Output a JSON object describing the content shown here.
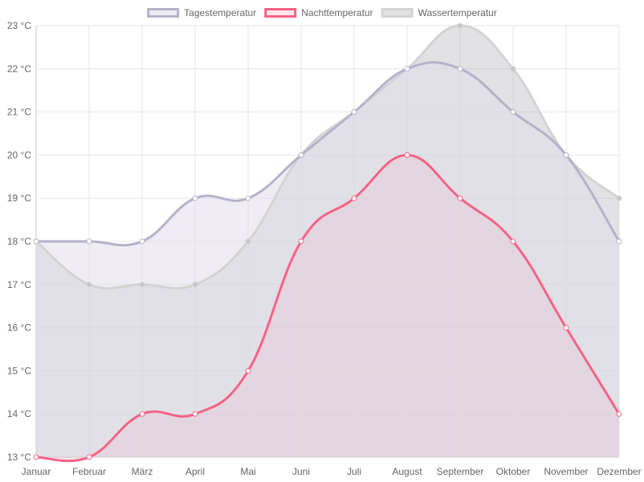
{
  "chart_data": {
    "type": "area",
    "categories": [
      "Januar",
      "Februar",
      "März",
      "April",
      "Mai",
      "Juni",
      "Juli",
      "August",
      "September",
      "Oktober",
      "November",
      "Dezember"
    ],
    "ylim": [
      13,
      23
    ],
    "y_unit": "°C",
    "y_ticks": [
      "13 °C",
      "14 °C",
      "15 °C",
      "16 °C",
      "17 °C",
      "18 °C",
      "19 °C",
      "20 °C",
      "21 °C",
      "22 °C",
      "23 °C"
    ],
    "grid": true,
    "legend_position": "top-center",
    "series": [
      {
        "name": "Tagestemperatur",
        "values": [
          18,
          18,
          18,
          19,
          19,
          20,
          21,
          22,
          22,
          21,
          20,
          18
        ],
        "line_color": "#b6b1cb",
        "fill_color": "rgba(225,222,234,0.55)",
        "point_fill": "#ffffff"
      },
      {
        "name": "Nachttemperatur",
        "values": [
          13,
          13,
          14,
          14,
          15,
          18,
          19,
          20,
          19,
          18,
          16,
          14
        ],
        "line_color": "#f56383",
        "fill_color": "rgba(245,99,131,0.16)",
        "point_fill": "#ffffff"
      },
      {
        "name": "Wassertemperatur",
        "values": [
          18,
          17,
          17,
          17,
          18,
          20,
          21,
          22,
          23,
          22,
          20,
          19
        ],
        "line_color": "#d3d3d3",
        "fill_color": "rgba(185,185,192,0.42)",
        "point_fill": "#c6c6c6"
      }
    ]
  }
}
